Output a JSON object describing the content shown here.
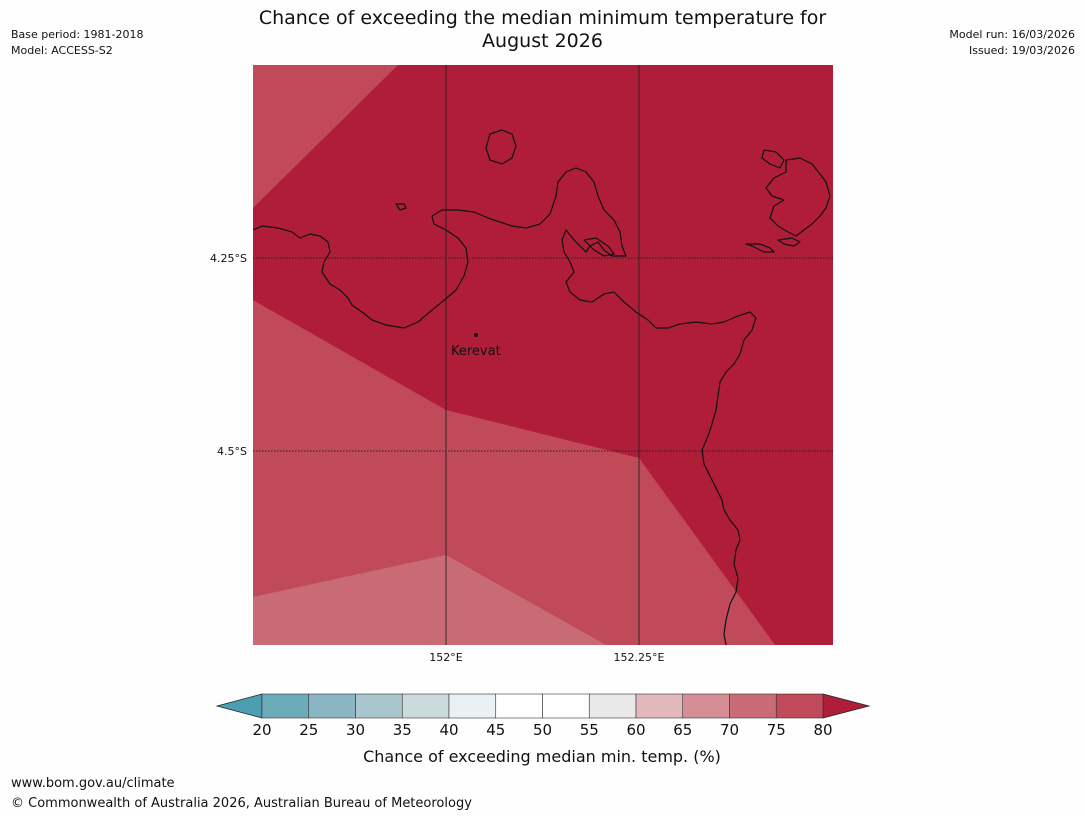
{
  "header": {
    "base_period": "Base period: 1981-2018",
    "model": "Model: ACCESS-S2",
    "model_run": "Model run: 16/03/2026",
    "issued": "Issued: 19/03/2026"
  },
  "title_line1": "Chance of exceeding the median minimum temperature for",
  "title_line2": "August 2026",
  "map": {
    "place_label": "Kerevat",
    "lat_labels": [
      "4.25°S",
      "4.5°S"
    ],
    "lon_labels": [
      "152°E",
      "152.25°E"
    ],
    "zone_colors": {
      "60_65": "#e3b8bd",
      "65_70": "#d68e96",
      "70_75": "#c96b75",
      "75_80": "#c04a59",
      "above_80": "#b01d39"
    }
  },
  "colorbar": {
    "ticks": [
      "20",
      "25",
      "30",
      "35",
      "40",
      "45",
      "50",
      "55",
      "60",
      "65",
      "70",
      "75",
      "80"
    ],
    "colors": [
      "#6cabba",
      "#8ab6c3",
      "#a9c6cc",
      "#cadadd",
      "#e9f1f3",
      "#ffffff",
      "#ffffff",
      "#e9e9e9",
      "#e3b8bd",
      "#d68e96",
      "#c96b75",
      "#c04a59"
    ],
    "under_color": "#4a9eb0",
    "over_color": "#b01d39",
    "label": "Chance of exceeding median min. temp. (%)"
  },
  "footer": {
    "url": "www.bom.gov.au/climate",
    "copyright": "© Commonwealth of Australia 2026, Australian Bureau of Meteorology"
  }
}
